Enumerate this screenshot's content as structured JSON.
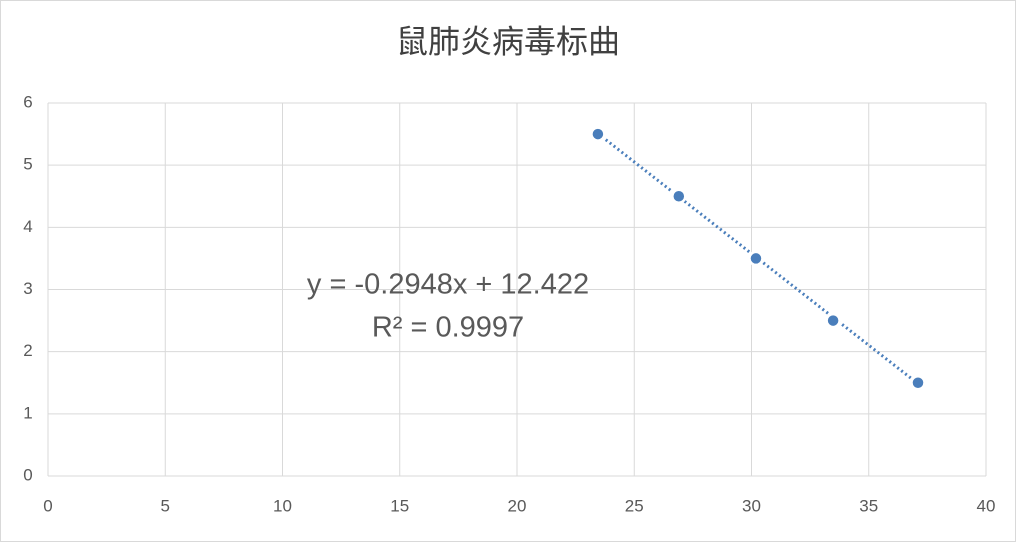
{
  "chart_data": {
    "type": "scatter",
    "title": "鼠肺炎病毒标曲",
    "x": [
      23.45,
      26.9,
      30.19,
      33.48,
      37.1
    ],
    "values": [
      5.5,
      4.5,
      3.5,
      2.5,
      1.5
    ],
    "color": "#4a7ebb",
    "xlim": [
      0,
      40
    ],
    "xticks": [
      0,
      5,
      10,
      15,
      20,
      25,
      30,
      35,
      40
    ],
    "ylim": [
      0,
      6
    ],
    "yticks": [
      0,
      1,
      2,
      3,
      4,
      5,
      6
    ],
    "grid": true,
    "trendline": {
      "slope": -0.2948,
      "intercept": 12.422,
      "equation": "y = -0.2948x + 12.422",
      "r_squared": "R² = 0.9997"
    }
  }
}
